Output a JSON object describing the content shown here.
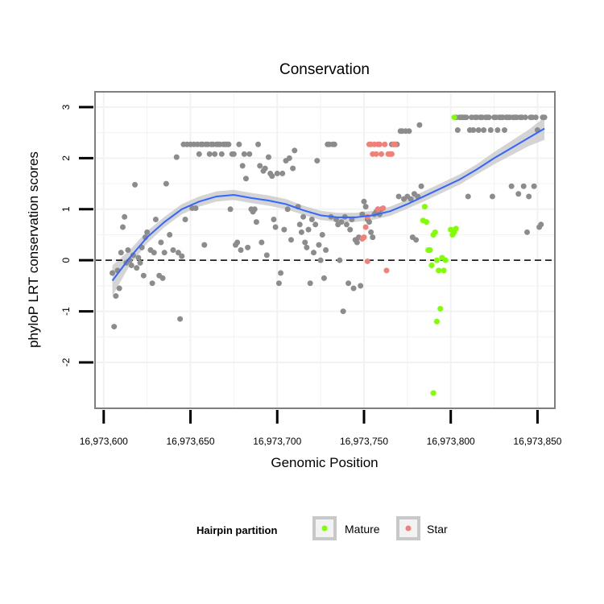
{
  "chart_data": {
    "type": "scatter",
    "title": "Conservation",
    "xlabel": "Genomic Position",
    "ylabel": "phyloP LRT conservation scores",
    "xlim": [
      16973595,
      16973860
    ],
    "ylim": [
      -2.9,
      3.3
    ],
    "x_ticks": [
      16973600,
      16973650,
      16973700,
      16973750,
      16973800,
      16973850
    ],
    "x_tick_labels": [
      "16,973,600",
      "16,973,650",
      "16,973,700",
      "16,973,750",
      "16,973,800",
      "16,973,850"
    ],
    "y_ticks": [
      -2,
      -1,
      0,
      1,
      2,
      3
    ],
    "y_tick_labels": [
      "-2",
      "-1",
      "0",
      "1",
      "2",
      "3"
    ],
    "reference_line": {
      "y": 0,
      "style": "dashed"
    },
    "legend": {
      "title": "Hairpin partition",
      "position": "bottom",
      "entries": [
        {
          "label": "Mature",
          "color": "#7fff00"
        },
        {
          "label": "Star",
          "color": "#f08078"
        }
      ]
    },
    "colors": {
      "other": "#8c8c8c",
      "mature": "#7fff00",
      "star": "#f08078",
      "smooth": "#3366ff",
      "band": "#cccccc",
      "panel_border": "#7f7f7f",
      "grid": "#f2f2f2"
    },
    "series": [
      {
        "name": "Other",
        "points": [
          [
            16973605,
            -0.25
          ],
          [
            16973606,
            -1.3
          ],
          [
            16973607,
            -0.7
          ],
          [
            16973608,
            -0.2
          ],
          [
            16973609,
            -0.55
          ],
          [
            16973610,
            0.15
          ],
          [
            16973611,
            0.65
          ],
          [
            16973612,
            0.85
          ],
          [
            16973613,
            -0.05
          ],
          [
            16973614,
            0.2
          ],
          [
            16973615,
            0.0
          ],
          [
            16973616,
            -0.1
          ],
          [
            16973617,
            0.1
          ],
          [
            16973618,
            1.48
          ],
          [
            16973619,
            -0.15
          ],
          [
            16973620,
            0.05
          ],
          [
            16973621,
            -0.05
          ],
          [
            16973622,
            0.25
          ],
          [
            16973623,
            -0.3
          ],
          [
            16973624,
            0.45
          ],
          [
            16973625,
            0.55
          ],
          [
            16973627,
            0.2
          ],
          [
            16973628,
            -0.45
          ],
          [
            16973629,
            0.15
          ],
          [
            16973630,
            0.8
          ],
          [
            16973632,
            -0.3
          ],
          [
            16973633,
            0.35
          ],
          [
            16973634,
            -0.35
          ],
          [
            16973635,
            0.15
          ],
          [
            16973636,
            1.5
          ],
          [
            16973638,
            0.5
          ],
          [
            16973640,
            0.2
          ],
          [
            16973642,
            2.02
          ],
          [
            16973643,
            0.15
          ],
          [
            16973644,
            -1.15
          ],
          [
            16973645,
            0.08
          ],
          [
            16973646,
            2.27
          ],
          [
            16973647,
            0.8
          ],
          [
            16973648,
            2.27
          ],
          [
            16973650,
            2.27
          ],
          [
            16973651,
            1.02
          ],
          [
            16973652,
            2.27
          ],
          [
            16973653,
            1.02
          ],
          [
            16973654,
            2.27
          ],
          [
            16973655,
            2.08
          ],
          [
            16973656,
            2.27
          ],
          [
            16973657,
            2.27
          ],
          [
            16973658,
            0.3
          ],
          [
            16973659,
            2.27
          ],
          [
            16973660,
            2.27
          ],
          [
            16973661,
            2.08
          ],
          [
            16973662,
            2.27
          ],
          [
            16973663,
            2.27
          ],
          [
            16973664,
            2.08
          ],
          [
            16973665,
            2.27
          ],
          [
            16973666,
            2.27
          ],
          [
            16973667,
            2.27
          ],
          [
            16973668,
            2.08
          ],
          [
            16973669,
            2.27
          ],
          [
            16973670,
            2.27
          ],
          [
            16973671,
            2.27
          ],
          [
            16973672,
            2.27
          ],
          [
            16973673,
            1.0
          ],
          [
            16973674,
            2.08
          ],
          [
            16973675,
            2.08
          ],
          [
            16973676,
            0.3
          ],
          [
            16973677,
            0.35
          ],
          [
            16973678,
            2.27
          ],
          [
            16973679,
            0.2
          ],
          [
            16973680,
            1.85
          ],
          [
            16973681,
            2.08
          ],
          [
            16973682,
            1.6
          ],
          [
            16973683,
            0.25
          ],
          [
            16973684,
            2.08
          ],
          [
            16973685,
            1.0
          ],
          [
            16973686,
            0.95
          ],
          [
            16973687,
            1.0
          ],
          [
            16973688,
            0.75
          ],
          [
            16973689,
            2.27
          ],
          [
            16973690,
            1.85
          ],
          [
            16973691,
            0.35
          ],
          [
            16973692,
            1.75
          ],
          [
            16973693,
            1.8
          ],
          [
            16973694,
            0.1
          ],
          [
            16973695,
            2.02
          ],
          [
            16973696,
            1.7
          ],
          [
            16973697,
            1.65
          ],
          [
            16973698,
            0.8
          ],
          [
            16973699,
            0.65
          ],
          [
            16973700,
            1.7
          ],
          [
            16973701,
            -0.45
          ],
          [
            16973702,
            -0.25
          ],
          [
            16973703,
            1.7
          ],
          [
            16973704,
            0.6
          ],
          [
            16973705,
            1.95
          ],
          [
            16973706,
            1.0
          ],
          [
            16973707,
            2.0
          ],
          [
            16973708,
            0.4
          ],
          [
            16973709,
            1.8
          ],
          [
            16973710,
            2.15
          ],
          [
            16973712,
            1.05
          ],
          [
            16973713,
            0.7
          ],
          [
            16973714,
            0.55
          ],
          [
            16973715,
            0.85
          ],
          [
            16973716,
            0.35
          ],
          [
            16973717,
            0.25
          ],
          [
            16973718,
            0.6
          ],
          [
            16973719,
            -0.45
          ],
          [
            16973720,
            0.8
          ],
          [
            16973721,
            0.15
          ],
          [
            16973722,
            0.7
          ],
          [
            16973723,
            1.95
          ],
          [
            16973724,
            0.3
          ],
          [
            16973725,
            0.0
          ],
          [
            16973726,
            0.5
          ],
          [
            16973727,
            -0.35
          ],
          [
            16973728,
            0.2
          ],
          [
            16973729,
            2.27
          ],
          [
            16973730,
            2.27
          ],
          [
            16973731,
            0.85
          ],
          [
            16973732,
            2.27
          ],
          [
            16973733,
            2.27
          ],
          [
            16973734,
            0.8
          ],
          [
            16973735,
            0.7
          ],
          [
            16973736,
            0.0
          ],
          [
            16973737,
            0.75
          ],
          [
            16973738,
            -1.0
          ],
          [
            16973739,
            0.85
          ],
          [
            16973740,
            0.7
          ],
          [
            16973741,
            -0.45
          ],
          [
            16973742,
            0.6
          ],
          [
            16973743,
            0.8
          ],
          [
            16973744,
            -0.55
          ],
          [
            16973745,
            0.4
          ],
          [
            16973746,
            0.35
          ],
          [
            16973747,
            0.45
          ],
          [
            16973748,
            -0.5
          ],
          [
            16973749,
            0.9
          ],
          [
            16973750,
            1.15
          ],
          [
            16973751,
            1.05
          ],
          [
            16973752,
            0.8
          ],
          [
            16973753,
            0.75
          ],
          [
            16973754,
            0.55
          ],
          [
            16973755,
            0.45
          ],
          [
            16973756,
            0.9
          ],
          [
            16973757,
            0.95
          ],
          [
            16973758,
            1.0
          ],
          [
            16973759,
            0.9
          ],
          [
            16973760,
            1.0
          ],
          [
            16973766,
            2.27
          ],
          [
            16973767,
            2.27
          ],
          [
            16973768,
            2.27
          ],
          [
            16973769,
            2.27
          ],
          [
            16973770,
            1.25
          ],
          [
            16973771,
            2.53
          ],
          [
            16973772,
            2.53
          ],
          [
            16973773,
            1.2
          ],
          [
            16973774,
            2.53
          ],
          [
            16973775,
            1.25
          ],
          [
            16973776,
            2.53
          ],
          [
            16973777,
            1.2
          ],
          [
            16973778,
            0.45
          ],
          [
            16973779,
            1.3
          ],
          [
            16973780,
            0.4
          ],
          [
            16973781,
            1.25
          ],
          [
            16973782,
            2.65
          ],
          [
            16973783,
            1.45
          ],
          [
            16973803,
            2.8
          ],
          [
            16973804,
            2.55
          ],
          [
            16973805,
            2.8
          ],
          [
            16973806,
            2.8
          ],
          [
            16973807,
            2.8
          ],
          [
            16973808,
            2.8
          ],
          [
            16973809,
            2.8
          ],
          [
            16973810,
            1.25
          ],
          [
            16973811,
            2.55
          ],
          [
            16973812,
            2.8
          ],
          [
            16973813,
            2.55
          ],
          [
            16973814,
            2.8
          ],
          [
            16973815,
            2.8
          ],
          [
            16973816,
            2.55
          ],
          [
            16973817,
            2.8
          ],
          [
            16973818,
            2.8
          ],
          [
            16973819,
            2.55
          ],
          [
            16973820,
            2.8
          ],
          [
            16973821,
            2.8
          ],
          [
            16973822,
            2.8
          ],
          [
            16973823,
            2.55
          ],
          [
            16973824,
            1.25
          ],
          [
            16973825,
            2.8
          ],
          [
            16973826,
            2.8
          ],
          [
            16973827,
            2.55
          ],
          [
            16973828,
            2.8
          ],
          [
            16973829,
            2.8
          ],
          [
            16973830,
            2.8
          ],
          [
            16973831,
            2.55
          ],
          [
            16973832,
            2.8
          ],
          [
            16973833,
            2.8
          ],
          [
            16973834,
            2.8
          ],
          [
            16973835,
            1.45
          ],
          [
            16973836,
            2.8
          ],
          [
            16973837,
            2.8
          ],
          [
            16973838,
            2.8
          ],
          [
            16973839,
            1.3
          ],
          [
            16973840,
            2.8
          ],
          [
            16973841,
            2.8
          ],
          [
            16973842,
            1.45
          ],
          [
            16973843,
            2.8
          ],
          [
            16973844,
            0.55
          ],
          [
            16973845,
            1.25
          ],
          [
            16973846,
            2.8
          ],
          [
            16973847,
            2.8
          ],
          [
            16973848,
            1.45
          ],
          [
            16973849,
            2.8
          ],
          [
            16973850,
            2.55
          ],
          [
            16973851,
            0.65
          ],
          [
            16973852,
            0.7
          ],
          [
            16973853,
            2.8
          ],
          [
            16973854,
            2.8
          ]
        ]
      },
      {
        "name": "Mature",
        "points": [
          [
            16973784,
            0.78
          ],
          [
            16973785,
            1.05
          ],
          [
            16973786,
            0.75
          ],
          [
            16973787,
            0.2
          ],
          [
            16973788,
            0.2
          ],
          [
            16973789,
            -0.1
          ],
          [
            16973790,
            0.5
          ],
          [
            16973790,
            -2.6
          ],
          [
            16973791,
            0.55
          ],
          [
            16973792,
            0.0
          ],
          [
            16973792,
            -1.2
          ],
          [
            16973793,
            -0.2
          ],
          [
            16973794,
            -0.95
          ],
          [
            16973795,
            0.05
          ],
          [
            16973796,
            -0.2
          ],
          [
            16973797,
            0.0
          ],
          [
            16973800,
            0.6
          ],
          [
            16973801,
            0.5
          ],
          [
            16973802,
            0.55
          ],
          [
            16973802,
            2.8
          ],
          [
            16973803,
            0.62
          ]
        ]
      },
      {
        "name": "Star",
        "points": [
          [
            16973749,
            0.42
          ],
          [
            16973750,
            0.45
          ],
          [
            16973751,
            0.65
          ],
          [
            16973752,
            0.85
          ],
          [
            16973752,
            -0.02
          ],
          [
            16973753,
            2.27
          ],
          [
            16973754,
            2.27
          ],
          [
            16973755,
            2.08
          ],
          [
            16973756,
            2.27
          ],
          [
            16973757,
            2.08
          ],
          [
            16973758,
            2.27
          ],
          [
            16973758,
            1.0
          ],
          [
            16973759,
            2.27
          ],
          [
            16973760,
            2.08
          ],
          [
            16973761,
            1.02
          ],
          [
            16973762,
            2.27
          ],
          [
            16973763,
            -0.2
          ],
          [
            16973764,
            2.08
          ],
          [
            16973765,
            2.08
          ],
          [
            16973766,
            2.08
          ],
          [
            16973767,
            2.27
          ],
          [
            16973768,
            2.27
          ]
        ]
      }
    ],
    "smooth_curve": {
      "x": [
        16973605,
        16973615,
        16973625,
        16973635,
        16973645,
        16973655,
        16973665,
        16973675,
        16973685,
        16973695,
        16973705,
        16973715,
        16973725,
        16973735,
        16973745,
        16973755,
        16973765,
        16973775,
        16973785,
        16973795,
        16973805,
        16973815,
        16973825,
        16973835,
        16973845,
        16973854
      ],
      "y": [
        -0.4,
        0.05,
        0.45,
        0.75,
        1.0,
        1.15,
        1.25,
        1.28,
        1.22,
        1.17,
        1.1,
        0.98,
        0.88,
        0.84,
        0.84,
        0.88,
        0.96,
        1.1,
        1.26,
        1.42,
        1.58,
        1.78,
        2.0,
        2.2,
        2.4,
        2.58
      ],
      "band_halfwidth": [
        0.3,
        0.15,
        0.12,
        0.1,
        0.1,
        0.1,
        0.1,
        0.1,
        0.1,
        0.1,
        0.1,
        0.09,
        0.09,
        0.09,
        0.09,
        0.09,
        0.09,
        0.09,
        0.1,
        0.1,
        0.1,
        0.1,
        0.12,
        0.14,
        0.16,
        0.22
      ]
    }
  }
}
